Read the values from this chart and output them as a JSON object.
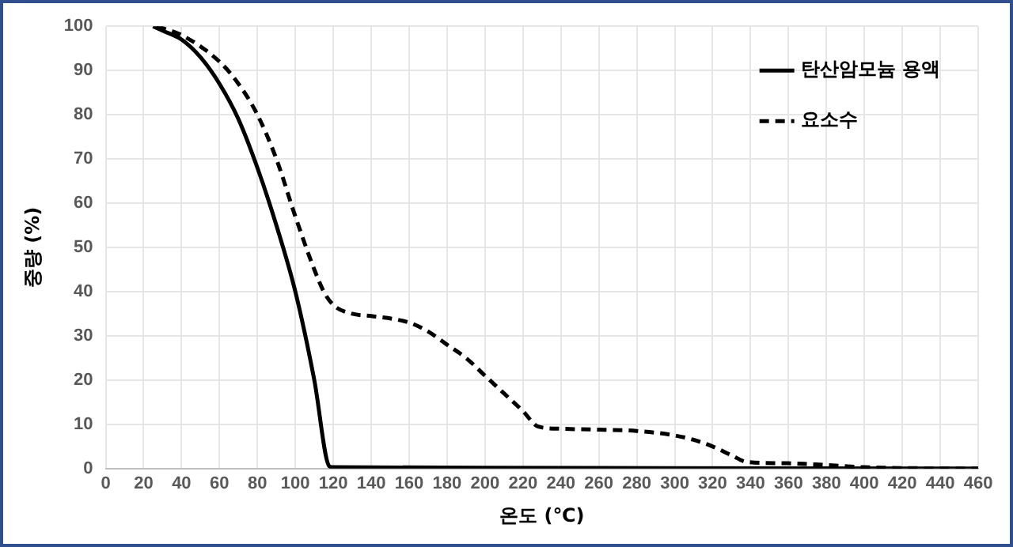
{
  "chart_data": {
    "type": "line",
    "xlabel": "온도 (℃)",
    "ylabel": "중량 (%)",
    "xlim": [
      0,
      460
    ],
    "xticks": [
      0,
      20,
      40,
      60,
      80,
      100,
      120,
      140,
      160,
      180,
      200,
      220,
      240,
      260,
      280,
      300,
      320,
      340,
      360,
      380,
      400,
      420,
      440,
      460
    ],
    "ylim": [
      0,
      100
    ],
    "yticks": [
      0,
      10,
      20,
      30,
      40,
      50,
      60,
      70,
      80,
      90,
      100
    ],
    "grid": true,
    "legend": "top right",
    "marker": "none",
    "series": [
      {
        "name": "탄산암모늄 용액",
        "color": "#000000",
        "line_style": "solid",
        "x": [
          25,
          30,
          40,
          50,
          60,
          70,
          80,
          90,
          100,
          110,
          118,
          120,
          200,
          300,
          460
        ],
        "values": [
          100,
          99,
          97,
          93,
          87,
          79,
          68,
          55,
          40,
          20,
          0.5,
          0.3,
          0.2,
          0.1,
          0
        ]
      },
      {
        "name": "요소수",
        "color": "#000000",
        "line_style": "dashed",
        "x": [
          27,
          40,
          60,
          70,
          80,
          90,
          100,
          110,
          115,
          120,
          130,
          140,
          160,
          170,
          180,
          190,
          200,
          210,
          220,
          228,
          240,
          260,
          280,
          300,
          310,
          320,
          330,
          338,
          360,
          380,
          400,
          460
        ],
        "values": [
          100,
          98,
          92,
          87,
          80,
          70,
          57,
          45,
          40,
          37,
          35,
          34.5,
          33,
          31,
          28,
          25,
          21,
          17,
          13,
          9.5,
          9,
          8.8,
          8.5,
          7.5,
          6.5,
          5,
          3,
          1.5,
          1.2,
          0.8,
          0.3,
          0
        ]
      }
    ]
  }
}
